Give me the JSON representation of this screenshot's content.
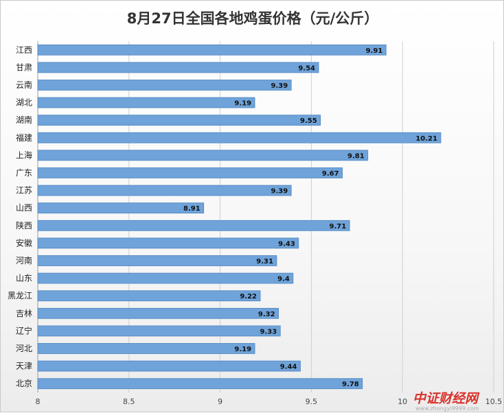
{
  "chart_data": {
    "type": "bar",
    "orientation": "horizontal",
    "title": "8月27日全国各地鸡蛋价格（元/公斤）",
    "categories": [
      "江西",
      "甘肃",
      "云南",
      "湖北",
      "湖南",
      "福建",
      "上海",
      "广东",
      "江苏",
      "山西",
      "陕西",
      "安徽",
      "河南",
      "山东",
      "黑龙江",
      "吉林",
      "辽宁",
      "河北",
      "天津",
      "北京"
    ],
    "values": [
      9.91,
      9.54,
      9.39,
      9.19,
      9.55,
      10.21,
      9.81,
      9.67,
      9.39,
      8.91,
      9.71,
      9.43,
      9.31,
      9.4,
      9.22,
      9.32,
      9.33,
      9.19,
      9.44,
      9.78
    ],
    "value_labels": [
      "9.91",
      "9.54",
      "9.39",
      "9.19",
      "9.55",
      "10.21",
      "9.81",
      "9.67",
      "9.39",
      "8.91",
      "9.71",
      "9.43",
      "9.31",
      "9.4",
      "9.22",
      "9.32",
      "9.33",
      "9.19",
      "9.44",
      "9.78"
    ],
    "xlim": [
      8,
      10.5
    ],
    "x_ticks": [
      "8",
      "8.5",
      "9",
      "9.5",
      "10",
      "10.5"
    ],
    "grid": true,
    "legend": "none",
    "bar_color": "#6fa3d9",
    "bar_border_color": "#4f86c2"
  },
  "watermark": {
    "logo_text": "中证财经网",
    "url": "www.zhongyi9999.com",
    "logo_color": "#d9312b",
    "logo_color_2": "#e05a2a"
  }
}
